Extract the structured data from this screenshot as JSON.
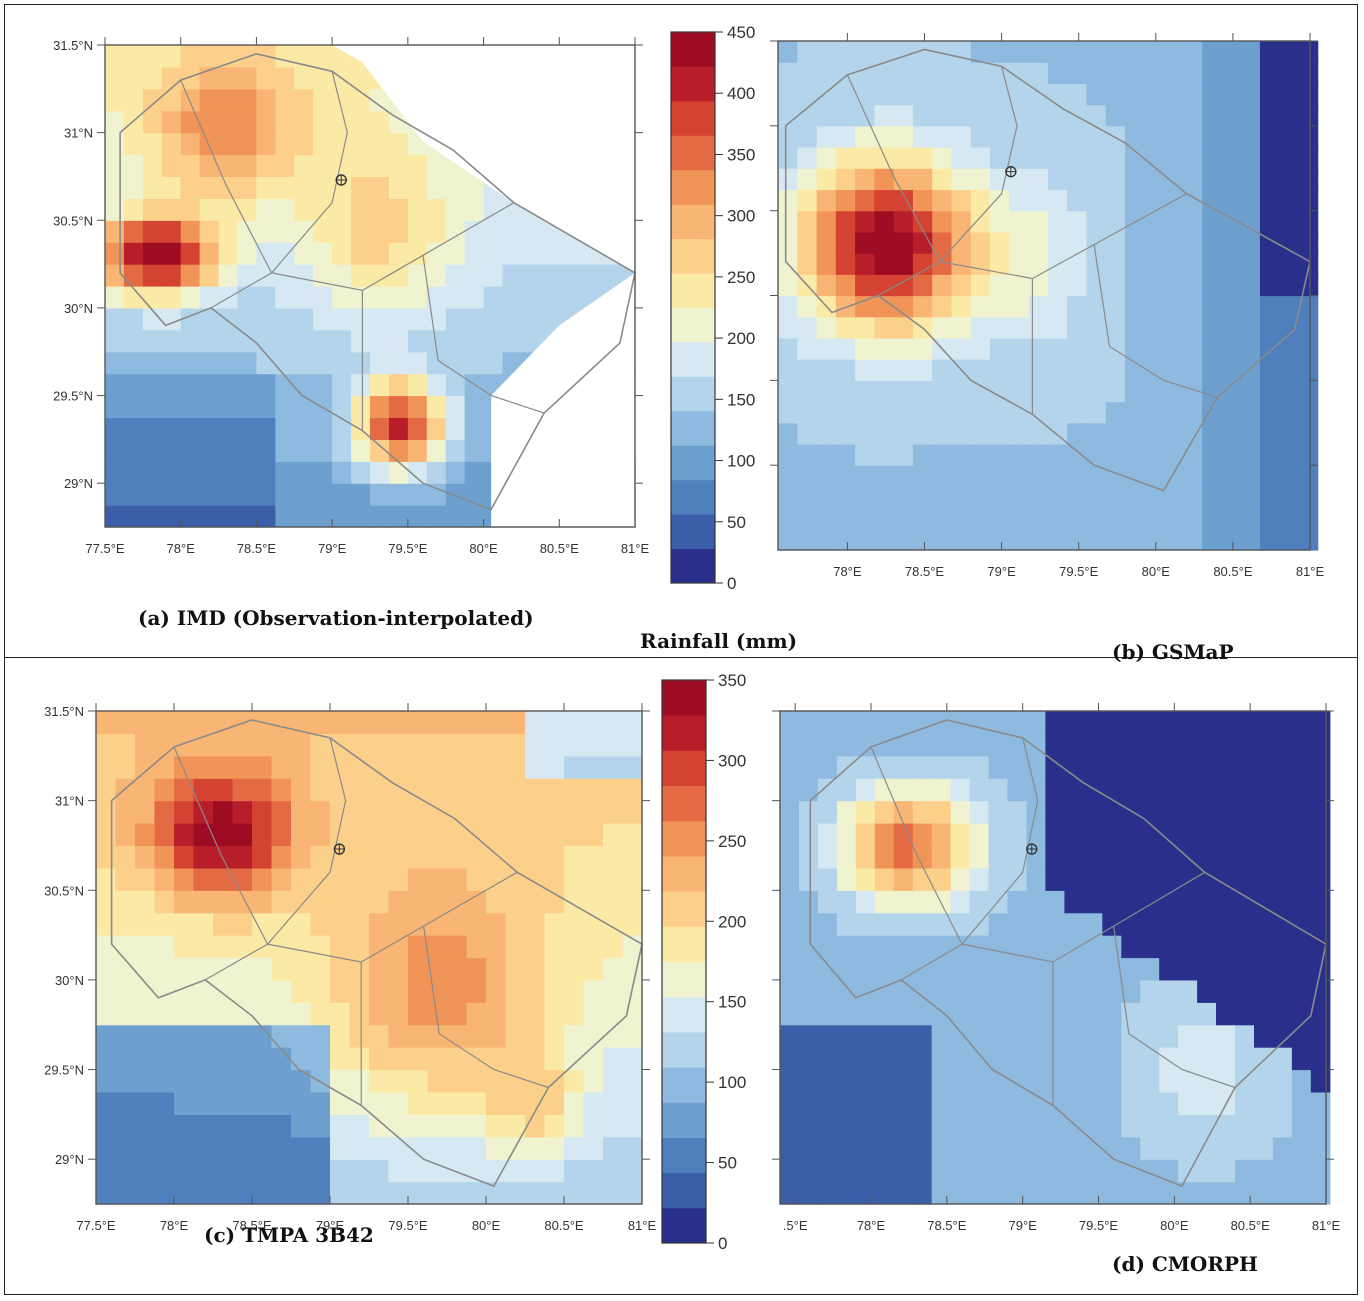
{
  "figure": {
    "unit_label": "Rainfall (mm)"
  },
  "panels": [
    {
      "id": "a",
      "caption": "(a) IMD (Observation-interpolated)",
      "x_ticks": [
        "77.5°E",
        "78°E",
        "78.5°E",
        "79°E",
        "79.5°E",
        "80°E",
        "80.5°E",
        "81°E"
      ],
      "y_ticks": [
        "31.5°N",
        "31°N",
        "30.5°N",
        "30°N",
        "29.5°N",
        "29°N"
      ],
      "field_max_mm": 450
    },
    {
      "id": "b",
      "caption": "(b) GSMaP",
      "x_ticks": [
        "78°E",
        "78.5°E",
        "79°E",
        "79.5°E",
        "80°E",
        "80.5°E",
        "81°E"
      ],
      "y_ticks": [],
      "field_max_mm": 450
    },
    {
      "id": "c",
      "caption": "(c) TMPA 3B42",
      "x_ticks": [
        "77.5°E",
        "78°E",
        "78.5°E",
        "79°E",
        "79.5°E",
        "80°E",
        "80.5°E",
        "81°E"
      ],
      "y_ticks": [
        "31.5°N",
        "31°N",
        "30.5°N",
        "30°N",
        "29.5°N",
        "29°N"
      ],
      "field_max_mm": 350
    },
    {
      "id": "d",
      "caption": "(d) CMORPH",
      "x_ticks": [
        ".5°E",
        "78°E",
        "78.5°E",
        "79°E",
        "79.5°E",
        "80°E",
        "80.5°E",
        "81°E"
      ],
      "y_ticks": [],
      "field_max_mm": 350
    }
  ],
  "colorbars": [
    {
      "id": "top",
      "ticks": [
        "450",
        "400",
        "350",
        "300",
        "250",
        "200",
        "150",
        "100",
        "50",
        "0"
      ],
      "max": 450,
      "min": 0
    },
    {
      "id": "bottom",
      "ticks": [
        "350",
        "300",
        "250",
        "200",
        "150",
        "100",
        "50",
        "0"
      ],
      "max": 350,
      "min": 0
    }
  ],
  "palette": [
    "#2a2f8c",
    "#3a5fa8",
    "#4f7fbd",
    "#6d9fcf",
    "#8fbadf",
    "#b3d4ea",
    "#d6e9f2",
    "#f0f3d0",
    "#fbe9a6",
    "#fcd08a",
    "#f9b574",
    "#f19457",
    "#e46a43",
    "#d44232",
    "#b81e2a",
    "#9e0c24"
  ],
  "colors": {
    "boundary": "#8a8a8a",
    "outline": "#555555",
    "frame": "#222222"
  }
}
